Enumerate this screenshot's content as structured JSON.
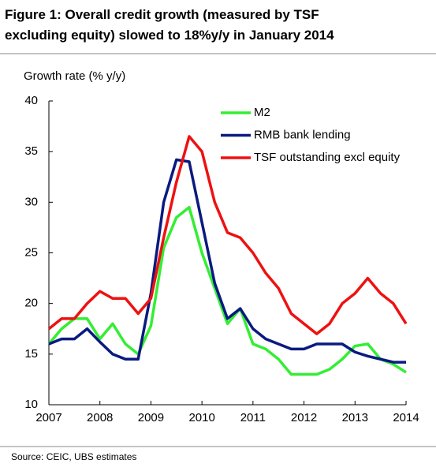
{
  "chart_data": {
    "type": "line",
    "title": [
      "Figure 1: Overall credit growth (measured by TSF",
      "excluding equity) slowed to 18%y/y in January 2014"
    ],
    "y_label": "Growth rate (% y/y)",
    "source": "Source: CEIC, UBS estimates",
    "x": [
      2007,
      2007.25,
      2007.5,
      2007.75,
      2008,
      2008.25,
      2008.5,
      2008.75,
      2009,
      2009.25,
      2009.5,
      2009.75,
      2010,
      2010.25,
      2010.5,
      2010.75,
      2011,
      2011.25,
      2011.5,
      2011.75,
      2012,
      2012.25,
      2012.5,
      2012.75,
      2013,
      2013.25,
      2013.5,
      2013.75,
      2014
    ],
    "series": [
      {
        "name": "M2",
        "color": "#33ee33",
        "values": [
          16,
          17.5,
          18.5,
          18.5,
          16.5,
          18,
          16,
          15,
          17.8,
          25.5,
          28.5,
          29.5,
          25,
          21.5,
          18,
          19.5,
          16,
          15.5,
          14.5,
          13,
          13,
          13,
          13.5,
          14.5,
          15.8,
          16,
          14.5,
          14,
          13.2
        ]
      },
      {
        "name": "RMB bank lending",
        "color": "#0a1a80",
        "values": [
          16,
          16.5,
          16.5,
          17.5,
          16.2,
          15,
          14.5,
          14.5,
          21,
          30,
          34.2,
          34,
          28,
          22,
          18.5,
          19.5,
          17.5,
          16.5,
          16,
          15.5,
          15.5,
          16,
          16,
          16,
          15.2,
          14.8,
          14.5,
          14.2,
          14.2
        ]
      },
      {
        "name": "TSF outstanding excl equity",
        "color": "#ee1111",
        "values": [
          17.5,
          18.5,
          18.5,
          20,
          21.2,
          20.5,
          20.5,
          19,
          20.5,
          26.5,
          32,
          36.5,
          35,
          30,
          27,
          26.5,
          25,
          23,
          21.5,
          19,
          18,
          17,
          18,
          20,
          21,
          22.5,
          21,
          20,
          18
        ]
      }
    ],
    "xlim": [
      2007,
      2014
    ],
    "xticks": [
      2007,
      2008,
      2009,
      2010,
      2011,
      2012,
      2013,
      2014
    ],
    "ylim": [
      10,
      40
    ],
    "yticks": [
      10,
      15,
      20,
      25,
      30,
      35,
      40
    ]
  }
}
